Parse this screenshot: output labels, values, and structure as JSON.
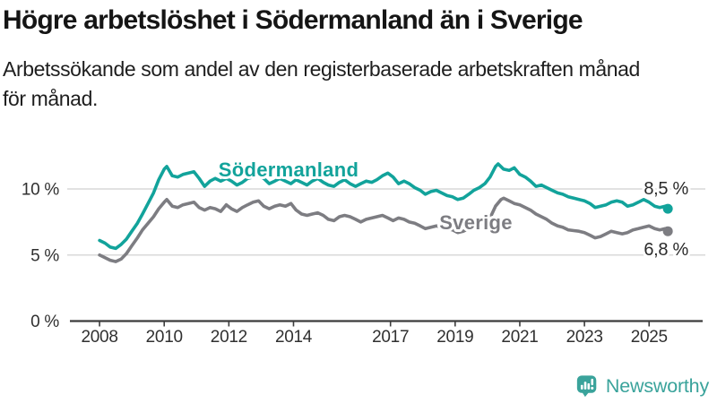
{
  "chart_data": {
    "type": "line",
    "title": "Högre arbetslöshet i Södermanland än i Sverige",
    "subtitle_lines": [
      "Arbetssökande som andel av den registerbaserade arbetskraften månad",
      "för månad."
    ],
    "unit": "%",
    "xlabel": "",
    "ylabel": "",
    "grid": "horizontal",
    "legend_position": "inline-labels",
    "xlim": [
      2007.0,
      2026.74
    ],
    "ylim": [
      0,
      13.5
    ],
    "x_ticks": [
      2008,
      2010,
      2012,
      2014,
      2017,
      2019,
      2021,
      2023,
      2025
    ],
    "y_ticks": [
      {
        "value": 0,
        "label": "0 %"
      },
      {
        "value": 5,
        "label": "5 %"
      },
      {
        "value": 10,
        "label": "10 %"
      }
    ],
    "colors": {
      "grid": "#d9d9d9",
      "axis": "#3c3c3c",
      "tick_text": "#303030",
      "end_label_text": "#2b2b2b"
    },
    "series": [
      {
        "name": "Södermanland",
        "color": "#12a39b",
        "end_label": "8,5 %",
        "end_value": 8.5,
        "x": [
          2008,
          2008.17,
          2008.33,
          2008.5,
          2008.67,
          2008.83,
          2009,
          2009.17,
          2009.33,
          2009.5,
          2009.67,
          2009.83,
          2010,
          2010.08,
          2010.25,
          2010.42,
          2010.58,
          2010.75,
          2010.92,
          2011.08,
          2011.25,
          2011.42,
          2011.58,
          2011.75,
          2011.92,
          2012.08,
          2012.25,
          2012.42,
          2012.58,
          2012.75,
          2012.92,
          2013.08,
          2013.25,
          2013.42,
          2013.58,
          2013.75,
          2013.92,
          2014.08,
          2014.25,
          2014.42,
          2014.58,
          2014.75,
          2014.92,
          2015.08,
          2015.25,
          2015.42,
          2015.58,
          2015.75,
          2015.92,
          2016.08,
          2016.25,
          2016.42,
          2016.58,
          2016.75,
          2016.92,
          2017.08,
          2017.25,
          2017.42,
          2017.58,
          2017.75,
          2017.92,
          2018.08,
          2018.25,
          2018.42,
          2018.58,
          2018.75,
          2018.92,
          2019.08,
          2019.25,
          2019.42,
          2019.58,
          2019.75,
          2019.92,
          2020.08,
          2020.25,
          2020.33,
          2020.5,
          2020.67,
          2020.83,
          2021,
          2021.17,
          2021.33,
          2021.5,
          2021.67,
          2021.83,
          2022,
          2022.17,
          2022.33,
          2022.5,
          2022.67,
          2022.83,
          2023,
          2023.17,
          2023.33,
          2023.5,
          2023.67,
          2023.83,
          2024,
          2024.17,
          2024.33,
          2024.5,
          2024.67,
          2024.83,
          2025,
          2025.17,
          2025.33,
          2025.5,
          2025.58
        ],
        "values": [
          6.1,
          5.9,
          5.6,
          5.5,
          5.8,
          6.2,
          6.8,
          7.4,
          8.1,
          8.9,
          9.7,
          10.7,
          11.5,
          11.7,
          11.0,
          10.9,
          11.1,
          11.2,
          11.3,
          10.8,
          10.2,
          10.6,
          10.8,
          10.6,
          10.8,
          10.6,
          10.3,
          10.5,
          10.8,
          10.9,
          11.0,
          10.8,
          10.4,
          10.6,
          10.8,
          10.6,
          10.4,
          10.7,
          10.5,
          10.3,
          10.6,
          10.8,
          10.5,
          10.3,
          10.2,
          10.5,
          10.7,
          10.4,
          10.2,
          10.4,
          10.6,
          10.5,
          10.7,
          11.0,
          11.2,
          10.9,
          10.4,
          10.6,
          10.4,
          10.1,
          9.9,
          9.6,
          9.8,
          9.9,
          9.7,
          9.5,
          9.4,
          9.2,
          9.3,
          9.6,
          9.9,
          10.1,
          10.4,
          10.9,
          11.7,
          11.9,
          11.5,
          11.4,
          11.6,
          11.1,
          10.9,
          10.6,
          10.2,
          10.3,
          10.1,
          9.9,
          9.7,
          9.6,
          9.4,
          9.3,
          9.2,
          9.1,
          8.9,
          8.6,
          8.7,
          8.8,
          9.0,
          9.1,
          9.0,
          8.7,
          8.8,
          9.0,
          9.2,
          9.0,
          8.7,
          8.6,
          8.7,
          8.5
        ]
      },
      {
        "name": "Sverige",
        "color": "#7d7d82",
        "end_label": "6,8 %",
        "end_value": 6.8,
        "x": [
          2008,
          2008.17,
          2008.33,
          2008.5,
          2008.67,
          2008.83,
          2009,
          2009.17,
          2009.33,
          2009.5,
          2009.67,
          2009.83,
          2010,
          2010.08,
          2010.25,
          2010.42,
          2010.58,
          2010.75,
          2010.92,
          2011.08,
          2011.25,
          2011.42,
          2011.58,
          2011.75,
          2011.92,
          2012.08,
          2012.25,
          2012.42,
          2012.58,
          2012.75,
          2012.92,
          2013.08,
          2013.25,
          2013.42,
          2013.58,
          2013.75,
          2013.92,
          2014.08,
          2014.25,
          2014.42,
          2014.58,
          2014.75,
          2014.92,
          2015.08,
          2015.25,
          2015.42,
          2015.58,
          2015.75,
          2015.92,
          2016.08,
          2016.25,
          2016.42,
          2016.58,
          2016.75,
          2016.92,
          2017.08,
          2017.25,
          2017.42,
          2017.58,
          2017.75,
          2017.92,
          2018.08,
          2018.25,
          2018.42,
          2018.58,
          2018.75,
          2018.92,
          2019.08,
          2019.25,
          2019.42,
          2019.58,
          2019.75,
          2019.92,
          2020.08,
          2020.25,
          2020.42,
          2020.5,
          2020.67,
          2020.83,
          2021,
          2021.17,
          2021.33,
          2021.5,
          2021.67,
          2021.83,
          2022,
          2022.17,
          2022.33,
          2022.5,
          2022.67,
          2022.83,
          2023,
          2023.17,
          2023.33,
          2023.5,
          2023.67,
          2023.83,
          2024,
          2024.17,
          2024.33,
          2024.5,
          2024.67,
          2024.83,
          2025,
          2025.17,
          2025.33,
          2025.5,
          2025.58
        ],
        "values": [
          5.0,
          4.8,
          4.6,
          4.5,
          4.7,
          5.1,
          5.7,
          6.3,
          6.9,
          7.4,
          7.9,
          8.5,
          9.0,
          9.2,
          8.7,
          8.6,
          8.8,
          8.9,
          9.0,
          8.6,
          8.4,
          8.6,
          8.5,
          8.3,
          8.8,
          8.5,
          8.3,
          8.6,
          8.8,
          9.0,
          9.1,
          8.7,
          8.5,
          8.7,
          8.8,
          8.7,
          8.9,
          8.4,
          8.1,
          8.0,
          8.1,
          8.2,
          8.0,
          7.7,
          7.6,
          7.9,
          8.0,
          7.9,
          7.7,
          7.5,
          7.7,
          7.8,
          7.9,
          8.0,
          7.8,
          7.6,
          7.8,
          7.7,
          7.5,
          7.4,
          7.2,
          7.0,
          7.1,
          7.2,
          7.1,
          7.0,
          6.9,
          6.7,
          6.8,
          7.0,
          7.1,
          7.3,
          7.5,
          7.8,
          8.7,
          9.2,
          9.3,
          9.1,
          8.9,
          8.8,
          8.6,
          8.4,
          8.1,
          7.9,
          7.7,
          7.4,
          7.2,
          7.1,
          6.9,
          6.85,
          6.8,
          6.7,
          6.5,
          6.3,
          6.4,
          6.6,
          6.8,
          6.7,
          6.6,
          6.7,
          6.9,
          7.0,
          7.1,
          7.2,
          7.0,
          6.9,
          7.0,
          6.8
        ]
      }
    ]
  },
  "footer": {
    "brand": "Newsworthy",
    "brand_color": "#3aa39b",
    "logo_icon": "bar-chart-speech-bubble"
  }
}
